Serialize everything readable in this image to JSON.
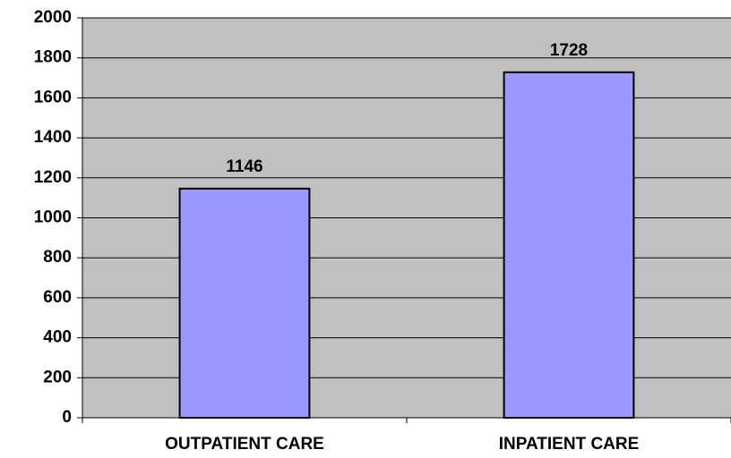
{
  "chart_data": {
    "type": "bar",
    "categories": [
      "OUTPATIENT CARE",
      "INPATIENT CARE"
    ],
    "values": [
      1146,
      1728
    ],
    "color": "#9999ff",
    "ylim": [
      0,
      2000
    ],
    "yticks": [
      0,
      200,
      400,
      600,
      800,
      1000,
      1200,
      1400,
      1600,
      1800,
      2000
    ],
    "grid": true
  }
}
